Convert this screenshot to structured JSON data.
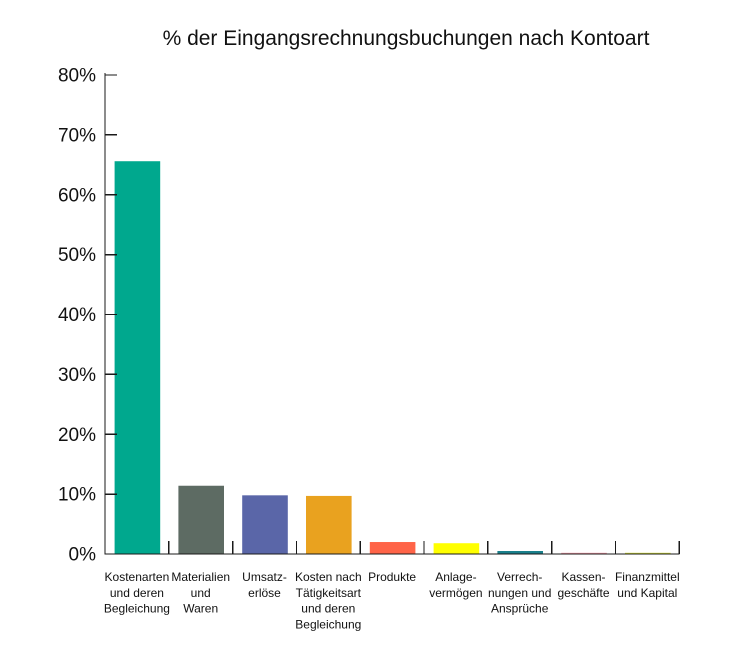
{
  "chart_data": {
    "type": "bar",
    "title": "% der Eingangsrechnungsbuchungen nach Kontoart",
    "categories": [
      [
        "Kostenarten",
        "und deren",
        "Begleichung"
      ],
      [
        "Materialien",
        "und",
        "Waren"
      ],
      [
        "Umsatz-",
        "erlöse"
      ],
      [
        "Kosten nach",
        "Tätigkeitsart",
        "und deren",
        "Begleichung"
      ],
      [
        "Produkte"
      ],
      [
        "Anlage-",
        "vermögen"
      ],
      [
        "Verrech-",
        "nungen und",
        "Ansprüche"
      ],
      [
        "Kassen-",
        "geschäfte"
      ],
      [
        "Finanzmittel",
        "und Kapital"
      ]
    ],
    "values": [
      65.6,
      11.4,
      9.8,
      9.7,
      2.0,
      1.8,
      0.5,
      0.2,
      0.2
    ],
    "colors": [
      "#00A88E",
      "#5D6B63",
      "#5A66A8",
      "#E9A21F",
      "#FF6448",
      "#FFFF00",
      "#1A7F8B",
      "#F49BA8",
      "#D4DF36"
    ],
    "ylim": [
      0,
      80
    ],
    "yticks": [
      0,
      10,
      20,
      30,
      40,
      50,
      60,
      70,
      80
    ],
    "ytick_labels": [
      "0%",
      "10%",
      "20%",
      "30%",
      "40%",
      "50%",
      "60%",
      "70%",
      "80%"
    ],
    "grid": false
  }
}
